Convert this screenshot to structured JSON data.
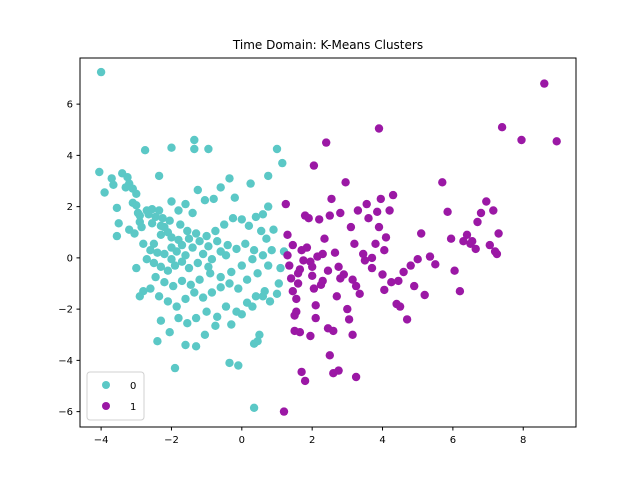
{
  "chart_data": {
    "type": "scatter",
    "title": "Time Domain: K-Means Clusters",
    "xlabel": "",
    "ylabel": "",
    "xlim": [
      -4.6,
      9.5
    ],
    "ylim": [
      -6.6,
      7.8
    ],
    "xticks": [
      -4,
      -2,
      0,
      2,
      4,
      6,
      8
    ],
    "yticks": [
      -6,
      -4,
      -2,
      0,
      2,
      4,
      6
    ],
    "grid": false,
    "legend_position": "bottom-left",
    "series": [
      {
        "name": "0",
        "color": "#5BC8C6",
        "points": [
          [
            -4.0,
            7.25
          ],
          [
            -4.05,
            3.35
          ],
          [
            -3.9,
            2.55
          ],
          [
            -3.7,
            3.1
          ],
          [
            -3.65,
            2.85
          ],
          [
            -3.55,
            1.95
          ],
          [
            -3.5,
            1.35
          ],
          [
            -3.55,
            0.85
          ],
          [
            -3.4,
            3.3
          ],
          [
            -3.3,
            2.75
          ],
          [
            -3.25,
            3.15
          ],
          [
            -3.2,
            2.9
          ],
          [
            -3.1,
            2.7
          ],
          [
            -3.0,
            2.5
          ],
          [
            -3.1,
            2.15
          ],
          [
            -3.0,
            2.05
          ],
          [
            -2.95,
            1.75
          ],
          [
            -2.9,
            1.4
          ],
          [
            -3.2,
            1.1
          ],
          [
            -3.05,
            0.95
          ],
          [
            -2.85,
            1.2
          ],
          [
            -2.7,
            1.85
          ],
          [
            -2.55,
            1.9
          ],
          [
            -2.45,
            1.6
          ],
          [
            -2.35,
            1.85
          ],
          [
            -2.25,
            1.55
          ],
          [
            -2.2,
            1.2
          ],
          [
            -2.1,
            1.0
          ],
          [
            -2.0,
            0.8
          ],
          [
            -2.5,
            0.55
          ],
          [
            -2.6,
            0.3
          ],
          [
            -2.4,
            0.2
          ],
          [
            -2.2,
            0.15
          ],
          [
            -2.0,
            0.4
          ],
          [
            -1.85,
            0.25
          ],
          [
            -1.7,
            0.5
          ],
          [
            -1.6,
            0.1
          ],
          [
            -2.7,
            -0.05
          ],
          [
            -2.5,
            -0.2
          ],
          [
            -2.3,
            -0.35
          ],
          [
            -2.1,
            -0.5
          ],
          [
            -1.9,
            -0.3
          ],
          [
            -1.7,
            -0.15
          ],
          [
            -1.5,
            -0.4
          ],
          [
            -2.75,
            4.2
          ],
          [
            -2.35,
            3.2
          ],
          [
            -2.0,
            4.3
          ],
          [
            -1.35,
            4.6
          ],
          [
            -1.35,
            4.25
          ],
          [
            -0.95,
            4.25
          ],
          [
            -2.0,
            2.2
          ],
          [
            -1.8,
            1.85
          ],
          [
            -1.6,
            2.1
          ],
          [
            -1.4,
            1.75
          ],
          [
            -1.25,
            2.65
          ],
          [
            -1.05,
            2.25
          ],
          [
            -0.8,
            2.3
          ],
          [
            -0.6,
            2.75
          ],
          [
            -0.35,
            3.1
          ],
          [
            -0.2,
            2.35
          ],
          [
            0.25,
            2.9
          ],
          [
            0.75,
            3.2
          ],
          [
            1.0,
            4.25
          ],
          [
            1.15,
            3.7
          ],
          [
            0.75,
            2.0
          ],
          [
            0.6,
            1.7
          ],
          [
            0.4,
            1.6
          ],
          [
            0.2,
            1.25
          ],
          [
            0.0,
            1.5
          ],
          [
            -0.25,
            1.55
          ],
          [
            -0.5,
            1.3
          ],
          [
            -0.75,
            1.05
          ],
          [
            -1.0,
            0.85
          ],
          [
            -1.2,
            0.65
          ],
          [
            -1.4,
            0.4
          ],
          [
            -1.1,
            0.15
          ],
          [
            -0.85,
            -0.05
          ],
          [
            -0.6,
            0.25
          ],
          [
            -0.4,
            0.5
          ],
          [
            -0.15,
            0.35
          ],
          [
            0.1,
            0.55
          ],
          [
            0.35,
            0.3
          ],
          [
            0.6,
            0.1
          ],
          [
            0.85,
            0.3
          ],
          [
            0.7,
            0.75
          ],
          [
            0.9,
            1.1
          ],
          [
            0.55,
            1.05
          ],
          [
            0.3,
            -0.05
          ],
          [
            0.0,
            -0.3
          ],
          [
            -0.3,
            -0.55
          ],
          [
            -0.6,
            -0.75
          ],
          [
            -0.9,
            -0.6
          ],
          [
            -1.2,
            -0.85
          ],
          [
            -1.45,
            -1.05
          ],
          [
            -1.7,
            -0.9
          ],
          [
            -1.95,
            -1.1
          ],
          [
            -2.2,
            -0.95
          ],
          [
            -2.45,
            -0.75
          ],
          [
            -2.6,
            -1.2
          ],
          [
            -2.8,
            -1.3
          ],
          [
            -3.0,
            -0.4
          ],
          [
            -2.9,
            -1.5
          ],
          [
            -2.35,
            -1.5
          ],
          [
            -2.1,
            -1.7
          ],
          [
            -1.85,
            -1.9
          ],
          [
            -1.6,
            -1.6
          ],
          [
            -1.35,
            -1.35
          ],
          [
            -1.1,
            -1.55
          ],
          [
            -0.85,
            -1.35
          ],
          [
            -0.6,
            -1.15
          ],
          [
            -0.35,
            -1.0
          ],
          [
            -0.1,
            -1.2
          ],
          [
            0.15,
            -0.85
          ],
          [
            0.45,
            -0.6
          ],
          [
            0.75,
            -0.3
          ],
          [
            1.1,
            -0.4
          ],
          [
            1.2,
            0.25
          ],
          [
            1.05,
            -1.0
          ],
          [
            0.65,
            -1.3
          ],
          [
            0.4,
            -1.5
          ],
          [
            0.15,
            -1.75
          ],
          [
            -0.15,
            -2.1
          ],
          [
            -0.45,
            -1.9
          ],
          [
            -0.7,
            -2.3
          ],
          [
            -1.0,
            -2.1
          ],
          [
            -1.3,
            -2.35
          ],
          [
            -1.55,
            -2.55
          ],
          [
            -1.8,
            -2.35
          ],
          [
            -2.05,
            -2.9
          ],
          [
            -2.3,
            -2.45
          ],
          [
            -2.4,
            -3.25
          ],
          [
            -1.9,
            -4.3
          ],
          [
            -1.6,
            -3.4
          ],
          [
            -1.3,
            -3.45
          ],
          [
            -1.05,
            -3.0
          ],
          [
            -0.75,
            -2.65
          ],
          [
            -0.3,
            -2.6
          ],
          [
            -0.35,
            -4.1
          ],
          [
            -0.1,
            -4.2
          ],
          [
            0.35,
            -3.35
          ],
          [
            0.5,
            -3.0
          ],
          [
            0.45,
            -3.25
          ],
          [
            0.35,
            -5.85
          ],
          [
            0.0,
            -2.2
          ],
          [
            0.3,
            -1.9
          ],
          [
            0.6,
            -1.5
          ],
          [
            0.8,
            -1.7
          ],
          [
            1.0,
            -1.4
          ],
          [
            -2.0,
            -0.05
          ],
          [
            -1.8,
            0.7
          ],
          [
            -1.55,
            1.05
          ],
          [
            -1.3,
            0.95
          ],
          [
            -2.3,
            0.9
          ],
          [
            -2.55,
            1.35
          ],
          [
            -2.8,
            0.55
          ],
          [
            -2.3,
            1.25
          ],
          [
            -0.95,
            0.45
          ],
          [
            -0.7,
            0.65
          ],
          [
            -0.45,
            0.1
          ],
          [
            -1.25,
            -0.2
          ],
          [
            -0.95,
            -0.35
          ],
          [
            -2.05,
            1.45
          ],
          [
            -1.75,
            1.3
          ],
          [
            -1.5,
            0.75
          ],
          [
            -2.65,
            1.7
          ],
          [
            -2.9,
            1.65
          ]
        ]
      },
      {
        "name": "1",
        "color": "#9B18A5",
        "points": [
          [
            1.2,
            -6.0
          ],
          [
            1.25,
            2.1
          ],
          [
            1.3,
            0.9
          ],
          [
            1.3,
            0.1
          ],
          [
            1.35,
            -0.3
          ],
          [
            1.4,
            -0.8
          ],
          [
            1.45,
            -1.3
          ],
          [
            1.5,
            -2.25
          ],
          [
            1.5,
            -2.85
          ],
          [
            1.55,
            -2.1
          ],
          [
            1.6,
            -1.0
          ],
          [
            1.65,
            -0.45
          ],
          [
            1.7,
            0.3
          ],
          [
            1.75,
            -0.1
          ],
          [
            1.8,
            1.65
          ],
          [
            1.9,
            1.55
          ],
          [
            1.95,
            -0.15
          ],
          [
            2.0,
            -0.7
          ],
          [
            2.05,
            -1.2
          ],
          [
            2.1,
            -1.85
          ],
          [
            2.15,
            0.05
          ],
          [
            2.2,
            1.5
          ],
          [
            2.25,
            -1.05
          ],
          [
            2.35,
            0.75
          ],
          [
            2.4,
            4.5
          ],
          [
            2.45,
            -0.5
          ],
          [
            2.5,
            1.65
          ],
          [
            2.55,
            2.3
          ],
          [
            2.6,
            -2.85
          ],
          [
            2.65,
            0.2
          ],
          [
            2.7,
            -1.5
          ],
          [
            2.75,
            -0.35
          ],
          [
            2.8,
            1.75
          ],
          [
            2.9,
            -0.65
          ],
          [
            2.95,
            2.95
          ],
          [
            3.05,
            -2.4
          ],
          [
            3.1,
            1.2
          ],
          [
            3.15,
            -0.85
          ],
          [
            3.2,
            0.55
          ],
          [
            3.25,
            -1.1
          ],
          [
            3.3,
            1.85
          ],
          [
            3.35,
            -1.4
          ],
          [
            3.45,
            0.15
          ],
          [
            3.5,
            -0.1
          ],
          [
            3.6,
            1.55
          ],
          [
            3.7,
            -0.4
          ],
          [
            3.8,
            0.55
          ],
          [
            3.85,
            1.8
          ],
          [
            3.9,
            5.05
          ],
          [
            3.95,
            2.3
          ],
          [
            4.0,
            -0.65
          ],
          [
            4.05,
            0.3
          ],
          [
            4.1,
            0.8
          ],
          [
            4.2,
            1.85
          ],
          [
            4.25,
            -0.95
          ],
          [
            4.3,
            2.45
          ],
          [
            4.4,
            -1.8
          ],
          [
            4.5,
            -1.9
          ],
          [
            4.6,
            -0.55
          ],
          [
            4.7,
            -2.4
          ],
          [
            4.8,
            -0.3
          ],
          [
            4.9,
            -1.1
          ],
          [
            5.0,
            -0.05
          ],
          [
            5.1,
            0.95
          ],
          [
            5.2,
            -1.45
          ],
          [
            5.35,
            0.05
          ],
          [
            5.5,
            -0.25
          ],
          [
            5.7,
            2.95
          ],
          [
            5.85,
            1.8
          ],
          [
            5.95,
            0.75
          ],
          [
            6.05,
            -0.5
          ],
          [
            6.2,
            -1.3
          ],
          [
            6.3,
            0.65
          ],
          [
            6.4,
            0.9
          ],
          [
            6.5,
            0.55
          ],
          [
            6.55,
            0.65
          ],
          [
            6.65,
            0.35
          ],
          [
            6.7,
            1.4
          ],
          [
            6.8,
            1.75
          ],
          [
            6.95,
            2.2
          ],
          [
            7.05,
            0.5
          ],
          [
            7.15,
            1.85
          ],
          [
            7.2,
            0.25
          ],
          [
            7.25,
            0.15
          ],
          [
            7.3,
            0.95
          ],
          [
            7.4,
            5.1
          ],
          [
            7.95,
            4.6
          ],
          [
            8.6,
            6.8
          ],
          [
            8.95,
            4.55
          ],
          [
            2.05,
            3.6
          ],
          [
            2.5,
            -3.8
          ],
          [
            2.6,
            -4.5
          ],
          [
            2.75,
            -4.4
          ],
          [
            3.25,
            -4.65
          ],
          [
            1.7,
            -4.45
          ],
          [
            1.8,
            -4.8
          ],
          [
            2.1,
            -2.35
          ],
          [
            2.3,
            0.15
          ],
          [
            1.65,
            -2.9
          ],
          [
            1.55,
            -1.6
          ],
          [
            1.95,
            -3.05
          ],
          [
            2.45,
            -2.75
          ],
          [
            3.0,
            -2.0
          ],
          [
            3.15,
            -3.0
          ],
          [
            2.8,
            -0.8
          ],
          [
            3.55,
            2.1
          ],
          [
            3.9,
            1.2
          ],
          [
            4.05,
            -1.25
          ],
          [
            4.45,
            -0.9
          ],
          [
            3.7,
            0.0
          ],
          [
            1.85,
            0.4
          ],
          [
            2.0,
            -0.35
          ],
          [
            2.3,
            -0.9
          ],
          [
            1.45,
            0.5
          ],
          [
            1.6,
            -0.6
          ]
        ]
      }
    ]
  }
}
